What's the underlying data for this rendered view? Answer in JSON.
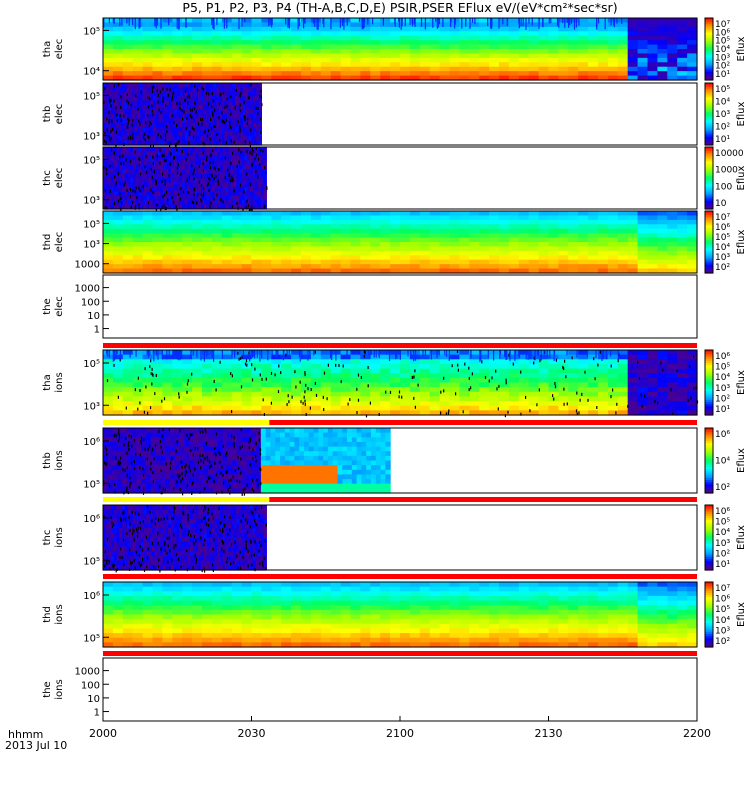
{
  "chart_data": {
    "type": "heatmap",
    "title": "P5, P1, P2, P3, P4 (TH-A,B,C,D,E) PSIR,PSER EFlux eV/(eV*cm²*sec*sr)",
    "x_axis": {
      "label_line1": "hhmm",
      "label_line2": "2013 Jul 10",
      "range": [
        "2000",
        "2200"
      ],
      "ticks": [
        "2000",
        "2030",
        "2100",
        "2130",
        "2200"
      ]
    },
    "panels": [
      {
        "probe": "tha",
        "species": "elec",
        "yticks": [
          "10⁵",
          "10⁴"
        ],
        "cbar_label": "Eflux",
        "cbar_ticks": [
          "10⁷",
          "10⁶",
          "10⁵",
          "10⁴",
          "10³",
          "10²",
          "10¹"
        ],
        "data_end": "2200",
        "log_range": [
          1,
          7
        ]
      },
      {
        "probe": "thb",
        "species": "elec",
        "yticks": [
          "10⁵",
          "10³"
        ],
        "cbar_label": "Eflux",
        "cbar_ticks": [
          "10⁵",
          "10⁴",
          "10³",
          "10²",
          "10¹"
        ],
        "data_end": "2032",
        "log_range": [
          1,
          5
        ]
      },
      {
        "probe": "thc",
        "species": "elec",
        "yticks": [
          "10⁵",
          "10³"
        ],
        "cbar_label": "Eflux",
        "cbar_ticks": [
          "10000",
          "1000",
          "100",
          "10"
        ],
        "data_end": "2033",
        "log_range": [
          1,
          4
        ]
      },
      {
        "probe": "thd",
        "species": "elec",
        "yticks": [
          "10⁵",
          "10³",
          "1000"
        ],
        "cbar_label": "Eflux",
        "cbar_ticks": [
          "10⁷",
          "10⁶",
          "10⁵",
          "10⁴",
          "10³",
          "10²"
        ],
        "data_end": "2200",
        "log_range": [
          2,
          7
        ]
      },
      {
        "probe": "the",
        "species": "elec",
        "yticks": [
          "1000",
          "100",
          "10",
          "1"
        ],
        "cbar_label": "",
        "cbar_ticks": [],
        "data_end": "2000",
        "log_range": [
          0,
          3
        ]
      },
      {
        "probe": "tha",
        "species": "ions",
        "yticks": [
          "10⁵",
          "10³"
        ],
        "cbar_label": "Eflux",
        "cbar_ticks": [
          "10⁶",
          "10⁵",
          "10⁴",
          "10³",
          "10²",
          "10¹"
        ],
        "data_end": "2200",
        "log_range": [
          1,
          6
        ]
      },
      {
        "probe": "thb",
        "species": "ions",
        "yticks": [
          "10⁶",
          "10⁵"
        ],
        "cbar_label": "Eflux",
        "cbar_ticks": [
          "10⁶",
          "10⁴",
          "10²"
        ],
        "data_end": "2058",
        "log_range": [
          1,
          6
        ]
      },
      {
        "probe": "thc",
        "species": "ions",
        "yticks": [
          "10⁶",
          "10⁵"
        ],
        "cbar_label": "Eflux",
        "cbar_ticks": [
          "10⁶",
          "10⁵",
          "10⁴",
          "10³",
          "10²",
          "10¹"
        ],
        "data_end": "2033",
        "log_range": [
          1,
          6
        ]
      },
      {
        "probe": "thd",
        "species": "ions",
        "yticks": [
          "10⁶",
          "10⁵"
        ],
        "cbar_label": "Eflux",
        "cbar_ticks": [
          "10⁷",
          "10⁶",
          "10⁵",
          "10⁴",
          "10³",
          "10²"
        ],
        "data_end": "2200",
        "log_range": [
          2,
          7
        ]
      },
      {
        "probe": "the",
        "species": "ions",
        "yticks": [
          "1000",
          "100",
          "10",
          "1"
        ],
        "cbar_label": "",
        "cbar_ticks": [],
        "data_end": "2000",
        "log_range": [
          0,
          3
        ]
      }
    ],
    "colors": {
      "colormap": [
        "#5a007a",
        "#0000ff",
        "#00a0ff",
        "#00ffff",
        "#00ff60",
        "#a0ff00",
        "#ffff00",
        "#ff9000",
        "#ff0000"
      ],
      "status_bar_red": "#ff0000",
      "status_bar_yellow": "#ffff00"
    }
  }
}
